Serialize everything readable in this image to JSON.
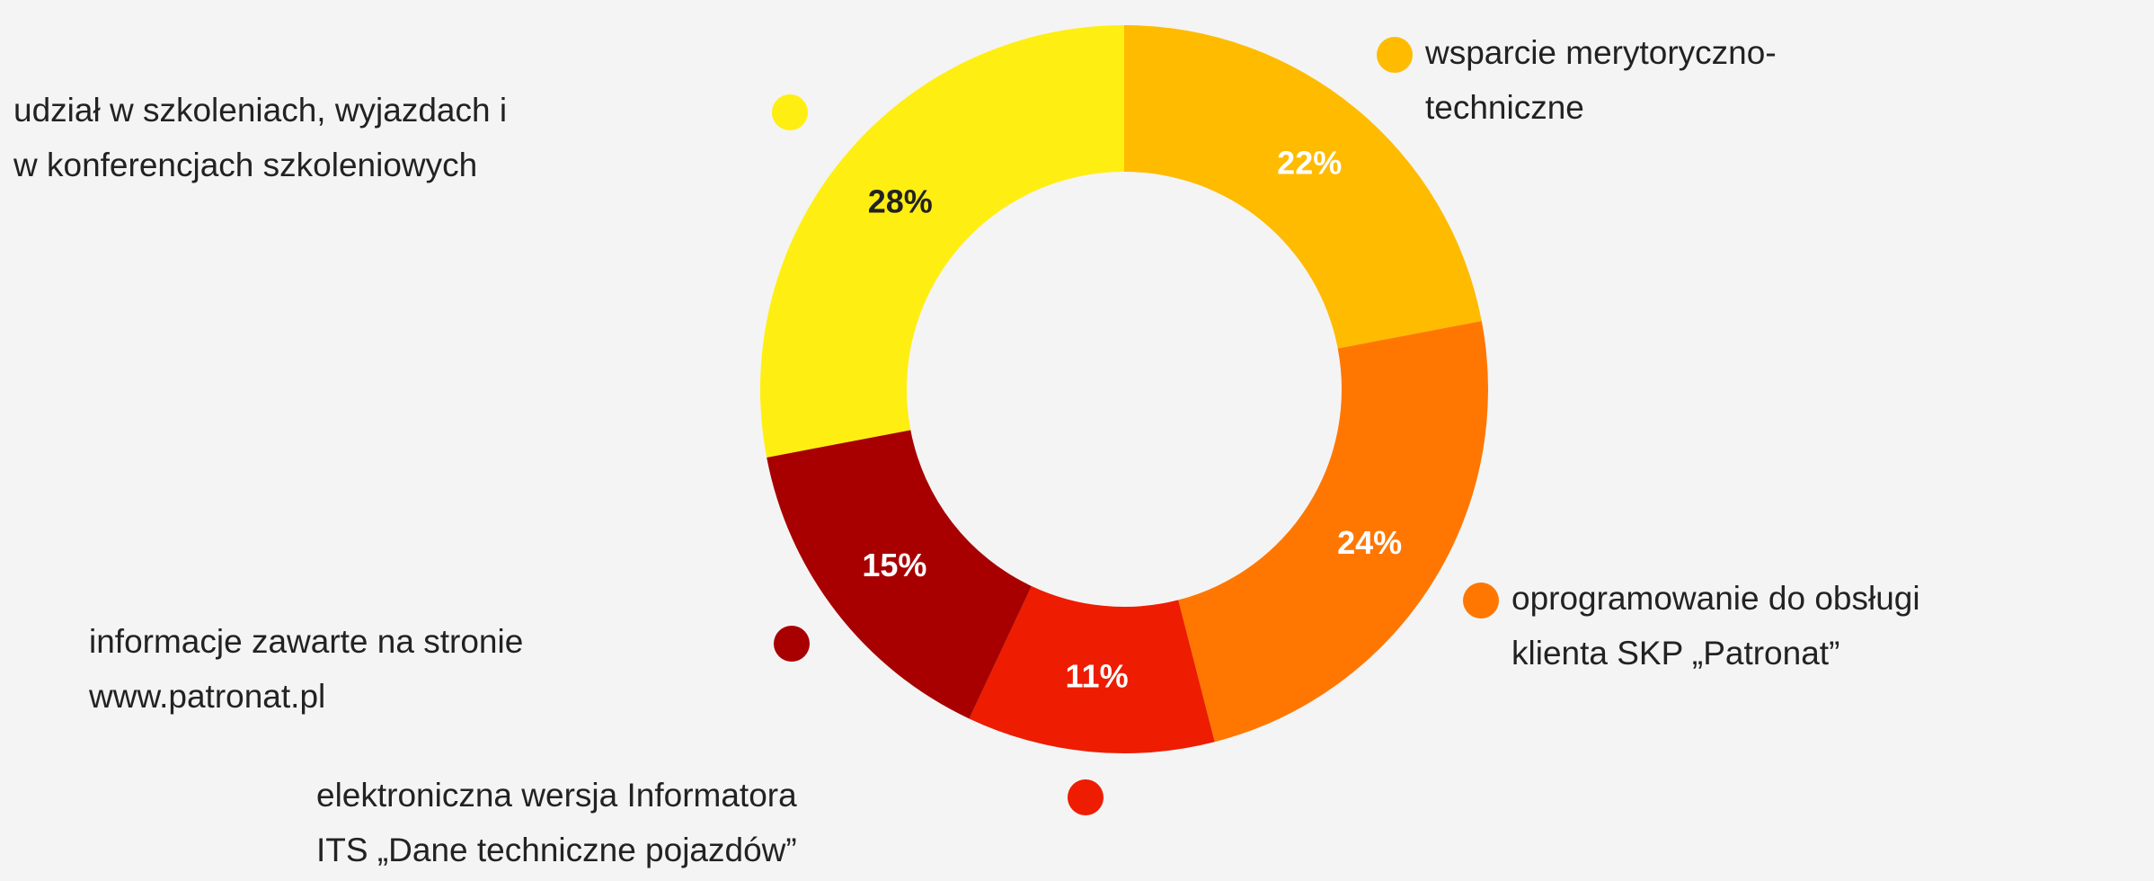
{
  "chart_data": {
    "type": "donut",
    "categories": [
      [
        "wsparcie merytoryczno-",
        "techniczne"
      ],
      [
        "oprogramowanie do obsługi",
        "klienta SKP „Patronat”"
      ],
      [
        "elektroniczna wersja Informatora",
        "ITS „Dane techniczne pojazdów”"
      ],
      [
        "informacje zawarte na stronie",
        "www.patronat.pl"
      ],
      [
        "udział w szkoleniach, wyjazdach i",
        "w konferencjach szkoleniowych"
      ]
    ],
    "values": [
      22,
      24,
      11,
      15,
      28
    ],
    "value_labels": [
      "22%",
      "24%",
      "11%",
      "15%",
      "28%"
    ],
    "colors": [
      "#ffbb00",
      "#ff7700",
      "#ee1c00",
      "#a80000",
      "#ffee11"
    ]
  }
}
